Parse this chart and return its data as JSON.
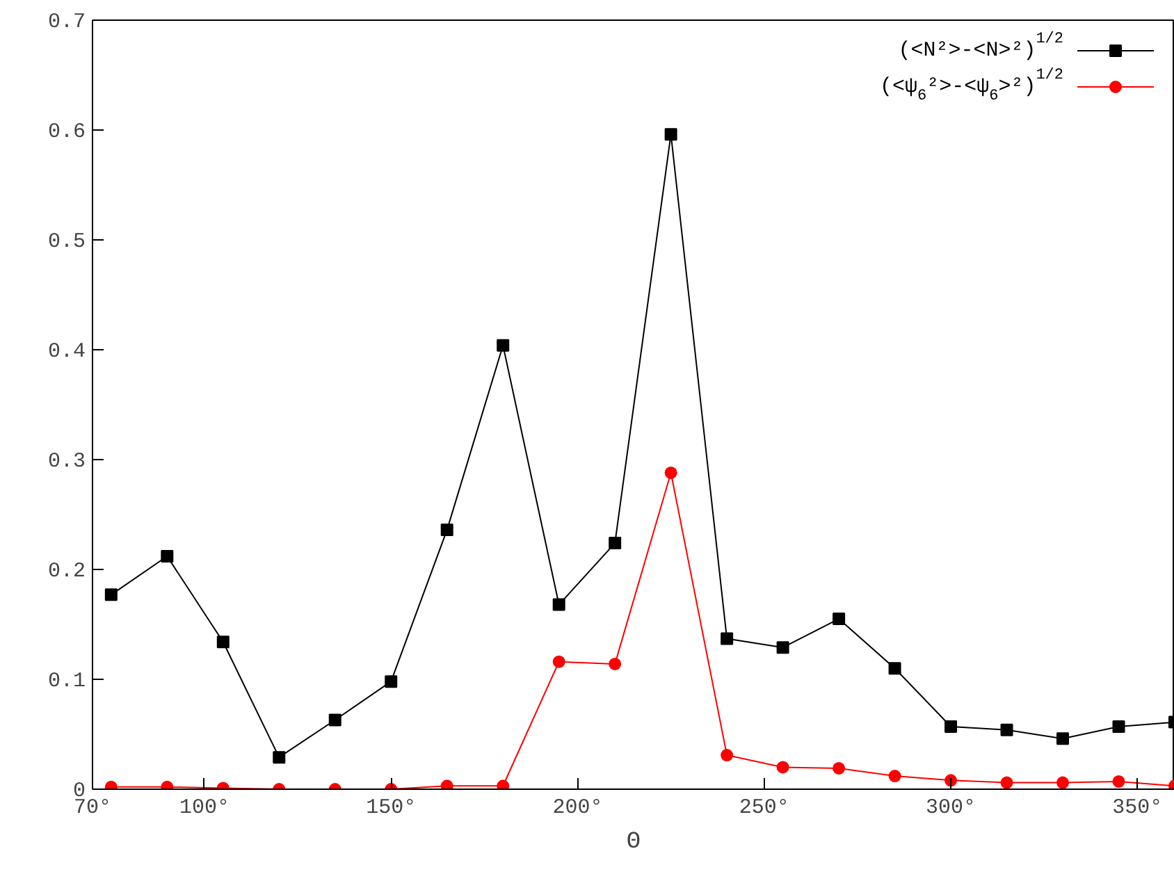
{
  "chart_data": {
    "type": "line",
    "xlabel": "Θ",
    "x": [
      75,
      90,
      105,
      120,
      135,
      150,
      165,
      180,
      195,
      210,
      225,
      240,
      255,
      270,
      285,
      300,
      315,
      330,
      345,
      360
    ],
    "series": [
      {
        "name": "(<N²>-<N>²)$^{1/2}$",
        "color": "#000000",
        "marker": "square",
        "values": [
          0.177,
          0.212,
          0.134,
          0.029,
          0.063,
          0.098,
          0.236,
          0.404,
          0.168,
          0.224,
          0.596,
          0.137,
          0.129,
          0.155,
          0.11,
          0.057,
          0.054,
          0.046,
          0.057,
          0.061
        ]
      },
      {
        "name": "(<ψ$_{6}$²>-<ψ$_{6}$>²)$^{1/2}$",
        "color": "#ff0000",
        "marker": "circle",
        "values": [
          0.002,
          0.002,
          0.001,
          0.0,
          0.0,
          0.0,
          0.003,
          0.003,
          0.116,
          0.114,
          0.288,
          0.031,
          0.02,
          0.019,
          0.012,
          0.008,
          0.006,
          0.006,
          0.007,
          0.003
        ]
      }
    ],
    "xlim": [
      70,
      360
    ],
    "ylim": [
      0,
      0.7
    ],
    "xticks": [
      {
        "value": 70,
        "label": "70°"
      },
      {
        "value": 100,
        "label": "100°"
      },
      {
        "value": 150,
        "label": "150°"
      },
      {
        "value": 200,
        "label": "200°"
      },
      {
        "value": 250,
        "label": "250°"
      },
      {
        "value": 300,
        "label": "300°"
      },
      {
        "value": 350,
        "label": "350°"
      }
    ],
    "yticks": [
      0,
      0.1,
      0.2,
      0.3,
      0.4,
      0.5,
      0.6,
      0.7
    ],
    "grid": false,
    "legend": "top right"
  }
}
